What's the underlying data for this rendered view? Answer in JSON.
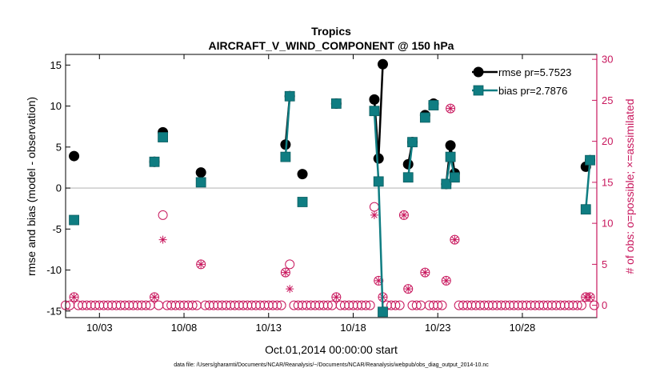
{
  "chart_data": {
    "type": "line",
    "title": "Tropics",
    "subtitle": "AIRCRAFT_V_WIND_COMPONENT @ 150 hPa",
    "xlabel": "Oct.01,2014 00:00:00 start",
    "ylabel": "rmse and bias (model - observation)",
    "ylabel_right": "# of obs: o=possible; ×=assimilated",
    "footnote": "data file: /Users/gharamti/Documents/NCAR/Reanalysis/~/Documents/NCAR/Reanalysis/webpub/obs_diag_output_2014-10.nc",
    "xlim": [
      1,
      32.4
    ],
    "ylim": [
      -15.8,
      16.3
    ],
    "ylim_right": [
      -1.5,
      30.6
    ],
    "x_ticks": [
      3,
      8,
      13,
      18,
      23,
      28
    ],
    "x_tick_labels": [
      "10/03",
      "10/08",
      "10/13",
      "10/18",
      "10/23",
      "10/28"
    ],
    "y_ticks": [
      -15,
      -10,
      -5,
      0,
      5,
      10,
      15
    ],
    "y_tick_labels": [
      "-15",
      "-10",
      "-5",
      "0",
      "5",
      "10",
      "15"
    ],
    "y_ticks_right": [
      0,
      5,
      10,
      15,
      20,
      25,
      30
    ],
    "y_tick_labels_right": [
      "0",
      "5",
      "10",
      "15",
      "20",
      "25",
      "30"
    ],
    "zero_line": 0,
    "legend_position": "top-right",
    "colors": {
      "rmse": "#000000",
      "bias": "#0f7d82",
      "obs": "#c8175d",
      "zero": "#bbbbbb"
    },
    "series": [
      {
        "name": "rmse pr=5.7523",
        "marker": "circle",
        "points": [
          [
            1.5,
            3.9
          ],
          [
            6.25,
            3.2
          ],
          [
            6.75,
            6.8
          ],
          [
            9.0,
            1.9
          ],
          [
            14.0,
            5.3
          ],
          [
            14.25,
            11.2
          ],
          [
            15.0,
            1.7
          ],
          [
            17.0,
            10.3
          ],
          [
            19.25,
            10.8
          ],
          [
            19.5,
            3.6
          ],
          [
            19.75,
            15.1
          ],
          [
            21.25,
            2.9
          ],
          [
            21.5,
            5.6
          ],
          [
            22.25,
            8.9
          ],
          [
            22.75,
            10.3
          ],
          [
            23.5,
            0.5
          ],
          [
            23.75,
            5.2
          ],
          [
            24.0,
            1.8
          ],
          [
            31.75,
            2.6
          ],
          [
            32.0,
            3.4
          ]
        ]
      },
      {
        "name": "bias pr=2.7876",
        "marker": "square",
        "points": [
          [
            1.5,
            -3.9
          ],
          [
            6.25,
            3.2
          ],
          [
            6.75,
            6.2
          ],
          [
            9.0,
            0.7
          ],
          [
            14.0,
            3.8
          ],
          [
            14.25,
            11.2
          ],
          [
            15.0,
            -1.7
          ],
          [
            17.0,
            10.3
          ],
          [
            19.25,
            9.4
          ],
          [
            19.5,
            0.8
          ],
          [
            19.75,
            -15.1
          ],
          [
            21.25,
            1.3
          ],
          [
            21.5,
            5.6
          ],
          [
            22.25,
            8.6
          ],
          [
            22.75,
            10.1
          ],
          [
            23.5,
            0.5
          ],
          [
            23.75,
            3.8
          ],
          [
            24.0,
            1.3
          ],
          [
            31.75,
            -2.6
          ],
          [
            32.0,
            3.4
          ]
        ]
      }
    ],
    "obs_possible": [
      [
        1.0,
        0
      ],
      [
        1.25,
        0
      ],
      [
        1.5,
        1
      ],
      [
        1.75,
        0
      ],
      [
        2.0,
        0
      ],
      [
        2.25,
        0
      ],
      [
        2.5,
        0
      ],
      [
        2.75,
        0
      ],
      [
        3.0,
        0
      ],
      [
        3.25,
        0
      ],
      [
        3.5,
        0
      ],
      [
        3.75,
        0
      ],
      [
        4.0,
        0
      ],
      [
        4.25,
        0
      ],
      [
        4.5,
        0
      ],
      [
        4.75,
        0
      ],
      [
        5.0,
        0
      ],
      [
        5.25,
        0
      ],
      [
        5.5,
        0
      ],
      [
        5.75,
        0
      ],
      [
        6.0,
        0
      ],
      [
        6.25,
        1
      ],
      [
        6.5,
        0
      ],
      [
        6.75,
        11
      ],
      [
        7.0,
        0
      ],
      [
        7.25,
        0
      ],
      [
        7.5,
        0
      ],
      [
        7.75,
        0
      ],
      [
        8.0,
        0
      ],
      [
        8.25,
        0
      ],
      [
        8.5,
        0
      ],
      [
        8.75,
        0
      ],
      [
        9.0,
        5
      ],
      [
        9.25,
        0
      ],
      [
        9.5,
        0
      ],
      [
        9.75,
        0
      ],
      [
        10.0,
        0
      ],
      [
        10.25,
        0
      ],
      [
        10.5,
        0
      ],
      [
        10.75,
        0
      ],
      [
        11.0,
        0
      ],
      [
        11.25,
        0
      ],
      [
        11.5,
        0
      ],
      [
        11.75,
        0
      ],
      [
        12.0,
        0
      ],
      [
        12.25,
        0
      ],
      [
        12.5,
        0
      ],
      [
        12.75,
        0
      ],
      [
        13.0,
        0
      ],
      [
        13.25,
        0
      ],
      [
        13.5,
        0
      ],
      [
        13.75,
        0
      ],
      [
        14.0,
        4
      ],
      [
        14.25,
        5
      ],
      [
        14.5,
        0
      ],
      [
        14.75,
        0
      ],
      [
        15.0,
        0
      ],
      [
        15.25,
        0
      ],
      [
        15.5,
        0
      ],
      [
        15.75,
        0
      ],
      [
        16.0,
        0
      ],
      [
        16.25,
        0
      ],
      [
        16.5,
        0
      ],
      [
        16.75,
        0
      ],
      [
        17.0,
        1
      ],
      [
        17.25,
        0
      ],
      [
        17.5,
        0
      ],
      [
        17.75,
        0
      ],
      [
        18.0,
        0
      ],
      [
        18.25,
        0
      ],
      [
        18.5,
        0
      ],
      [
        18.75,
        0
      ],
      [
        19.0,
        0
      ],
      [
        19.25,
        12
      ],
      [
        19.5,
        3
      ],
      [
        19.75,
        1
      ],
      [
        20.0,
        0
      ],
      [
        20.25,
        0
      ],
      [
        20.5,
        0
      ],
      [
        20.75,
        0
      ],
      [
        21.0,
        11
      ],
      [
        21.25,
        2
      ],
      [
        21.5,
        0
      ],
      [
        21.75,
        0
      ],
      [
        22.0,
        0
      ],
      [
        22.25,
        4
      ],
      [
        22.5,
        0
      ],
      [
        22.75,
        0
      ],
      [
        23.0,
        0
      ],
      [
        23.25,
        0
      ],
      [
        23.5,
        3
      ],
      [
        23.75,
        24
      ],
      [
        24.0,
        8
      ],
      [
        24.25,
        0
      ],
      [
        24.5,
        0
      ],
      [
        24.75,
        0
      ],
      [
        25.0,
        0
      ],
      [
        25.25,
        0
      ],
      [
        25.5,
        0
      ],
      [
        25.75,
        0
      ],
      [
        26.0,
        0
      ],
      [
        26.25,
        0
      ],
      [
        26.5,
        0
      ],
      [
        26.75,
        0
      ],
      [
        27.0,
        0
      ],
      [
        27.25,
        0
      ],
      [
        27.5,
        0
      ],
      [
        27.75,
        0
      ],
      [
        28.0,
        0
      ],
      [
        28.25,
        0
      ],
      [
        28.5,
        0
      ],
      [
        28.75,
        0
      ],
      [
        29.0,
        0
      ],
      [
        29.25,
        0
      ],
      [
        29.5,
        0
      ],
      [
        29.75,
        0
      ],
      [
        30.0,
        0
      ],
      [
        30.25,
        0
      ],
      [
        30.5,
        0
      ],
      [
        30.75,
        0
      ],
      [
        31.0,
        0
      ],
      [
        31.25,
        0
      ],
      [
        31.5,
        0
      ],
      [
        31.75,
        1
      ],
      [
        32.0,
        1
      ],
      [
        32.25,
        0
      ]
    ],
    "obs_assimilated": [
      [
        1.5,
        1
      ],
      [
        6.25,
        1
      ],
      [
        6.75,
        8
      ],
      [
        9.0,
        5
      ],
      [
        14.0,
        4
      ],
      [
        14.25,
        2
      ],
      [
        17.0,
        1
      ],
      [
        19.25,
        11
      ],
      [
        19.5,
        3
      ],
      [
        19.75,
        1
      ],
      [
        21.0,
        11
      ],
      [
        21.25,
        2
      ],
      [
        22.25,
        4
      ],
      [
        23.5,
        3
      ],
      [
        23.75,
        24
      ],
      [
        24.0,
        8
      ],
      [
        31.75,
        1
      ],
      [
        32.0,
        1
      ]
    ]
  }
}
